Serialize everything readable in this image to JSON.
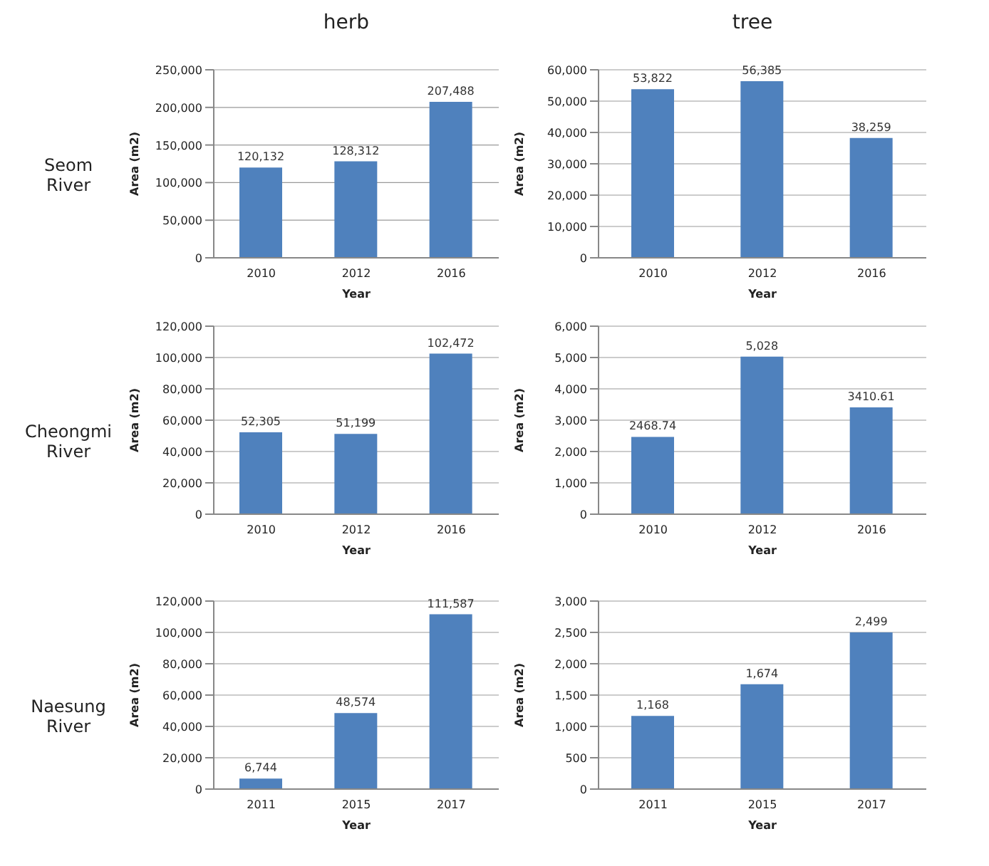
{
  "chart_data": [
    {
      "type": "bar",
      "title": "herb",
      "annotations": [
        "Seom River"
      ],
      "xlabel": "Year",
      "ylabel": "Area (m2)",
      "categories": [
        "2010",
        "2012",
        "2016"
      ],
      "values": [
        120132,
        128312,
        207488
      ],
      "value_labels": [
        "120,132",
        "128,312",
        "207,488"
      ],
      "color": "#4f81bd",
      "ylim": [
        0,
        250000
      ],
      "yticks": [
        {
          "value": 0,
          "label": "0"
        },
        {
          "value": 50000,
          "label": "50,000"
        },
        {
          "value": 100000,
          "label": "100,000"
        },
        {
          "value": 150000,
          "label": "150,000"
        },
        {
          "value": 200000,
          "label": "200,000"
        },
        {
          "value": 250000,
          "label": "250,000"
        }
      ],
      "grid": "y"
    },
    {
      "type": "bar",
      "title": "tree",
      "xlabel": "Year",
      "ylabel": "Area (m2)",
      "categories": [
        "2010",
        "2012",
        "2016"
      ],
      "values": [
        53822,
        56385,
        38259
      ],
      "value_labels": [
        "53,822",
        "56,385",
        "38,259"
      ],
      "color": "#4f81bd",
      "ylim": [
        0,
        60000
      ],
      "yticks": [
        {
          "value": 0,
          "label": "0"
        },
        {
          "value": 10000,
          "label": "10,000"
        },
        {
          "value": 20000,
          "label": "20,000"
        },
        {
          "value": 30000,
          "label": "30,000"
        },
        {
          "value": 40000,
          "label": "40,000"
        },
        {
          "value": 50000,
          "label": "50,000"
        },
        {
          "value": 60000,
          "label": "60,000"
        }
      ],
      "grid": "y"
    },
    {
      "type": "bar",
      "annotations": [
        "Cheongmi River"
      ],
      "xlabel": "Year",
      "ylabel": "Area (m2)",
      "categories": [
        "2010",
        "2012",
        "2016"
      ],
      "values": [
        52305,
        51199,
        102472
      ],
      "value_labels": [
        "52,305",
        "51,199",
        "102,472"
      ],
      "color": "#4f81bd",
      "ylim": [
        0,
        120000
      ],
      "yticks": [
        {
          "value": 0,
          "label": "0"
        },
        {
          "value": 20000,
          "label": "20,000"
        },
        {
          "value": 40000,
          "label": "40,000"
        },
        {
          "value": 60000,
          "label": "60,000"
        },
        {
          "value": 80000,
          "label": "80,000"
        },
        {
          "value": 100000,
          "label": "100,000"
        },
        {
          "value": 120000,
          "label": "120,000"
        }
      ],
      "grid": "y"
    },
    {
      "type": "bar",
      "xlabel": "Year",
      "ylabel": "Area (m2)",
      "categories": [
        "2010",
        "2012",
        "2016"
      ],
      "values": [
        2468.74,
        5028,
        3410.61
      ],
      "value_labels": [
        "2468.74",
        "5,028",
        "3410.61"
      ],
      "color": "#4f81bd",
      "ylim": [
        0,
        6000
      ],
      "yticks": [
        {
          "value": 0,
          "label": "0"
        },
        {
          "value": 1000,
          "label": "1,000"
        },
        {
          "value": 2000,
          "label": "2,000"
        },
        {
          "value": 3000,
          "label": "3,000"
        },
        {
          "value": 4000,
          "label": "4,000"
        },
        {
          "value": 5000,
          "label": "5,000"
        },
        {
          "value": 6000,
          "label": "6,000"
        }
      ],
      "grid": "y"
    },
    {
      "type": "bar",
      "annotations": [
        "Naesung River"
      ],
      "xlabel": "Year",
      "ylabel": "Area (m2)",
      "categories": [
        "2011",
        "2015",
        "2017"
      ],
      "values": [
        6744,
        48574,
        111587
      ],
      "value_labels": [
        "6,744",
        "48,574",
        "111,587"
      ],
      "color": "#4f81bd",
      "ylim": [
        0,
        120000
      ],
      "yticks": [
        {
          "value": 0,
          "label": "0"
        },
        {
          "value": 20000,
          "label": "20,000"
        },
        {
          "value": 40000,
          "label": "40,000"
        },
        {
          "value": 60000,
          "label": "60,000"
        },
        {
          "value": 80000,
          "label": "80,000"
        },
        {
          "value": 100000,
          "label": "100,000"
        },
        {
          "value": 120000,
          "label": "120,000"
        }
      ],
      "grid": "y"
    },
    {
      "type": "bar",
      "xlabel": "Year",
      "ylabel": "Area (m2)",
      "categories": [
        "2011",
        "2015",
        "2017"
      ],
      "values": [
        1168,
        1674,
        2499
      ],
      "value_labels": [
        "1,168",
        "1,674",
        "2,499"
      ],
      "color": "#4f81bd",
      "ylim": [
        0,
        3000
      ],
      "yticks": [
        {
          "value": 0,
          "label": "0"
        },
        {
          "value": 500,
          "label": "500"
        },
        {
          "value": 1000,
          "label": "1,000"
        },
        {
          "value": 1500,
          "label": "1,500"
        },
        {
          "value": 2000,
          "label": "2,000"
        },
        {
          "value": 2500,
          "label": "2,500"
        },
        {
          "value": 3000,
          "label": "3,000"
        }
      ],
      "grid": "y"
    }
  ]
}
